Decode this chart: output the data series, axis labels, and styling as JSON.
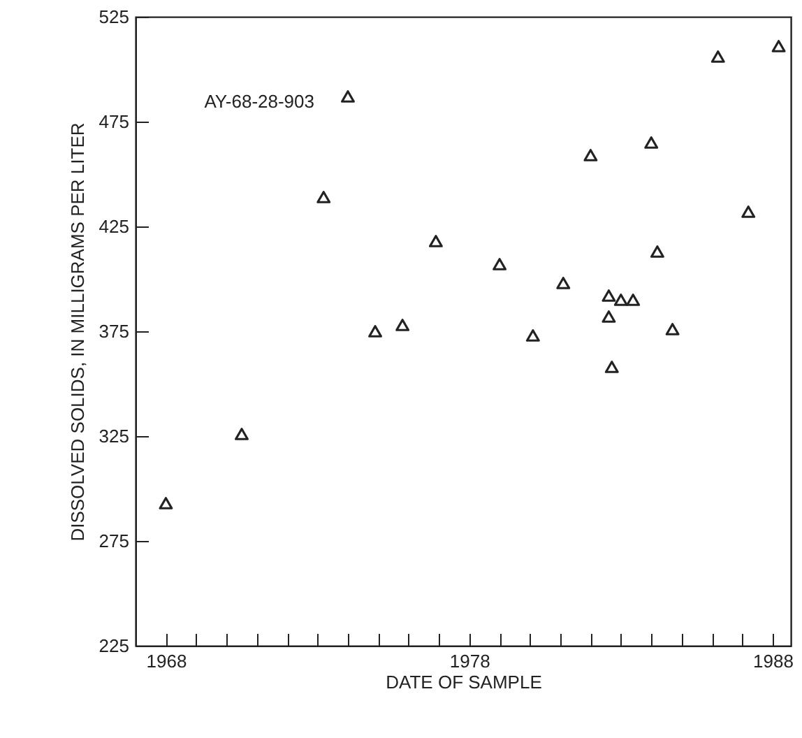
{
  "chart_data": {
    "type": "scatter",
    "xlabel": "DATE OF SAMPLE",
    "ylabel": "DISSOLVED SOLIDS, IN MILLIGRAMS PER LITER",
    "annotations": [
      "AY-68-28-903"
    ],
    "series": [
      {
        "color": "#222222",
        "x": [
          1968.0,
          1970.5,
          1973.2,
          1974.0,
          1974.9,
          1975.8,
          1976.9,
          1979.0,
          1980.1,
          1981.1,
          1982.0,
          1982.6,
          1982.6,
          1983.0,
          1983.4,
          1982.7,
          1984.0,
          1984.2,
          1984.7,
          1986.2,
          1987.2,
          1988.2
        ],
        "values": [
          293,
          326,
          439,
          487,
          375,
          378,
          418,
          407,
          373,
          398,
          459,
          392,
          382,
          390,
          390,
          358,
          465,
          413,
          376,
          506,
          432,
          511
        ]
      }
    ],
    "marker": "triangle",
    "grid": false,
    "xlim": [
      1967,
      1988.6
    ],
    "xticks": [
      1968,
      {
        "value": 1969,
        "label": null
      },
      {
        "value": 1970,
        "label": null
      },
      {
        "value": 1971,
        "label": null
      },
      {
        "value": 1972,
        "label": null
      },
      {
        "value": 1973,
        "label": null
      },
      {
        "value": 1974,
        "label": null
      },
      {
        "value": 1975,
        "label": null
      },
      {
        "value": 1976,
        "label": null
      },
      {
        "value": 1977,
        "label": null
      },
      1978,
      {
        "value": 1979,
        "label": null
      },
      {
        "value": 1980,
        "label": null
      },
      {
        "value": 1981,
        "label": null
      },
      {
        "value": 1982,
        "label": null
      },
      {
        "value": 1983,
        "label": null
      },
      {
        "value": 1984,
        "label": null
      },
      {
        "value": 1985,
        "label": null
      },
      {
        "value": 1986,
        "label": null
      },
      {
        "value": 1987,
        "label": null
      },
      1988
    ],
    "ylim": [
      225,
      525
    ],
    "yticks": [
      225,
      275,
      325,
      375,
      425,
      475,
      525
    ]
  }
}
